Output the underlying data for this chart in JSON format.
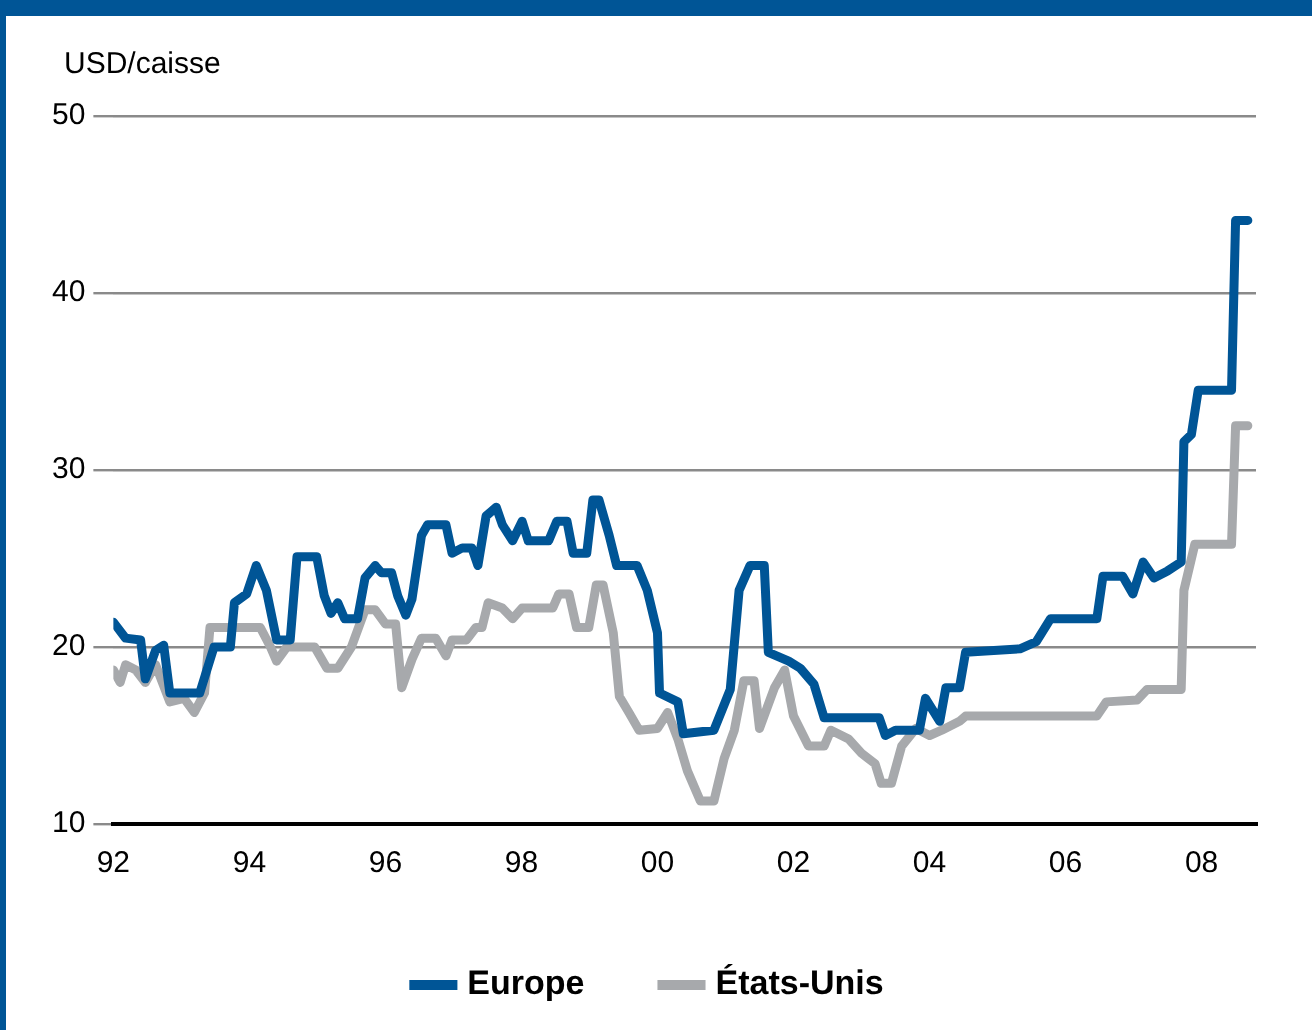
{
  "chart_data": {
    "type": "line",
    "ylabel": "USD/caisse",
    "xlim": [
      1992,
      2008.8
    ],
    "ylim": [
      10,
      50
    ],
    "xticks": [
      {
        "value": 1992,
        "label": "92"
      },
      {
        "value": 1994,
        "label": "94"
      },
      {
        "value": 1996,
        "label": "96"
      },
      {
        "value": 1998,
        "label": "98"
      },
      {
        "value": 2000,
        "label": "00"
      },
      {
        "value": 2002,
        "label": "02"
      },
      {
        "value": 2004,
        "label": "04"
      },
      {
        "value": 2006,
        "label": "06"
      },
      {
        "value": 2008,
        "label": "08"
      }
    ],
    "yticks": [
      10,
      20,
      30,
      40,
      50
    ],
    "grid": "y",
    "legend": "bottom",
    "marker": "none",
    "line_style": "solid",
    "series": [
      {
        "name": "Europe",
        "color": "#005596",
        "x": [
          1992,
          1992.18,
          1992.4,
          1992.47,
          1992.62,
          1992.74,
          1992.83,
          1993.27,
          1993.48,
          1993.72,
          1993.78,
          1993.96,
          1994.1,
          1994.25,
          1994.4,
          1994.6,
          1994.7,
          1994.99,
          1995.1,
          1995.2,
          1995.3,
          1995.4,
          1995.59,
          1995.7,
          1995.85,
          1995.94,
          1996.09,
          1996.18,
          1996.3,
          1996.39,
          1996.53,
          1996.62,
          1996.89,
          1996.98,
          1997.13,
          1997.27,
          1997.36,
          1997.48,
          1997.63,
          1997.72,
          1997.87,
          1998.01,
          1998.1,
          1998.4,
          1998.52,
          1998.67,
          1998.76,
          1998.96,
          1999.05,
          1999.14,
          1999.29,
          1999.4,
          1999.7,
          1999.85,
          2000.0,
          2000.03,
          2000.3,
          2000.38,
          2000.83,
          2001.07,
          2001.2,
          2001.36,
          2001.57,
          2001.63,
          2001.93,
          2002.1,
          2002.3,
          2002.45,
          2003.26,
          2003.35,
          2003.5,
          2003.85,
          2003.94,
          2004.15,
          2004.24,
          2004.44,
          2004.53,
          2005.33,
          2005.57,
          2005.78,
          2006.46,
          2006.55,
          2006.84,
          2006.99,
          2007.14,
          2007.3,
          2007.5,
          2007.7,
          2007.74,
          2007.85,
          2007.95,
          2008.44,
          2008.5,
          2008.68
        ],
        "values": [
          21.4,
          20.5,
          20.4,
          18.2,
          19.8,
          20.1,
          17.4,
          17.4,
          20,
          20,
          22.5,
          23,
          24.6,
          23.2,
          20.4,
          20.4,
          25.1,
          25.1,
          22.9,
          21.9,
          22.5,
          21.6,
          21.6,
          23.9,
          24.6,
          24.2,
          24.2,
          22.9,
          21.8,
          22.7,
          26.3,
          26.9,
          26.9,
          25.3,
          25.6,
          25.6,
          24.6,
          27.4,
          27.9,
          26.9,
          26,
          27.1,
          26,
          26,
          27.1,
          27.1,
          25.3,
          25.3,
          28.3,
          28.3,
          26.3,
          24.6,
          24.6,
          23.2,
          20.8,
          17.4,
          16.9,
          15.1,
          15.3,
          17.6,
          23.2,
          24.6,
          24.6,
          19.7,
          19.2,
          18.8,
          17.9,
          16,
          16,
          15,
          15.3,
          15.3,
          17.1,
          15.8,
          17.7,
          17.7,
          19.7,
          19.9,
          20.3,
          21.6,
          21.6,
          24,
          24,
          23,
          24.8,
          23.9,
          24.3,
          24.8,
          31.6,
          32,
          34.5,
          34.5,
          44.1,
          44.1
        ]
      },
      {
        "name": "États-Unis",
        "color": "#a7a9ac",
        "x": [
          1992,
          1992.1,
          1992.18,
          1992.33,
          1992.47,
          1992.62,
          1992.83,
          1993.04,
          1993.19,
          1993.34,
          1993.42,
          1994.16,
          1994.31,
          1994.4,
          1994.55,
          1994.96,
          1995.14,
          1995.3,
          1995.5,
          1995.7,
          1995.85,
          1996.0,
          1996.15,
          1996.24,
          1996.39,
          1996.53,
          1996.74,
          1996.89,
          1996.98,
          1997.19,
          1997.33,
          1997.42,
          1997.51,
          1997.72,
          1997.87,
          1998.01,
          1998.46,
          1998.55,
          1998.7,
          1998.81,
          1998.99,
          1999.1,
          1999.2,
          1999.35,
          1999.44,
          1999.58,
          1999.73,
          2000.0,
          2000.15,
          2000.3,
          2000.44,
          2000.63,
          2000.83,
          2000.98,
          2001.13,
          2001.27,
          2001.42,
          2001.5,
          2001.72,
          2001.87,
          2002.0,
          2002.22,
          2002.45,
          2002.55,
          2002.81,
          2003.0,
          2003.2,
          2003.29,
          2003.44,
          2003.59,
          2003.8,
          2004.0,
          2004.18,
          2004.44,
          2004.53,
          2006.46,
          2006.6,
          2007.05,
          2007.2,
          2007.7,
          2007.74,
          2007.9,
          2008.44,
          2008.5,
          2008.68
        ],
        "values": [
          18.7,
          18,
          19,
          18.7,
          18,
          19,
          16.9,
          17.1,
          16.3,
          17.4,
          21.1,
          21.1,
          20,
          19.2,
          20,
          20,
          18.8,
          18.8,
          20,
          22.1,
          22.1,
          21.3,
          21.3,
          17.7,
          19.3,
          20.5,
          20.5,
          19.5,
          20.4,
          20.4,
          21.1,
          21.1,
          22.5,
          22.2,
          21.6,
          22.2,
          22.2,
          23,
          23,
          21.1,
          21.1,
          23.5,
          23.5,
          20.8,
          17.2,
          16.3,
          15.3,
          15.4,
          16.3,
          14.8,
          13,
          11.3,
          11.3,
          13.7,
          15.3,
          18.1,
          18.1,
          15.4,
          17.7,
          18.7,
          16.1,
          14.4,
          14.4,
          15.3,
          14.8,
          14,
          13.4,
          12.3,
          12.3,
          14.4,
          15.4,
          15,
          15.3,
          15.8,
          16.1,
          16.1,
          16.9,
          17,
          17.6,
          17.6,
          23.2,
          25.8,
          25.8,
          32.5,
          32.5
        ]
      }
    ]
  }
}
